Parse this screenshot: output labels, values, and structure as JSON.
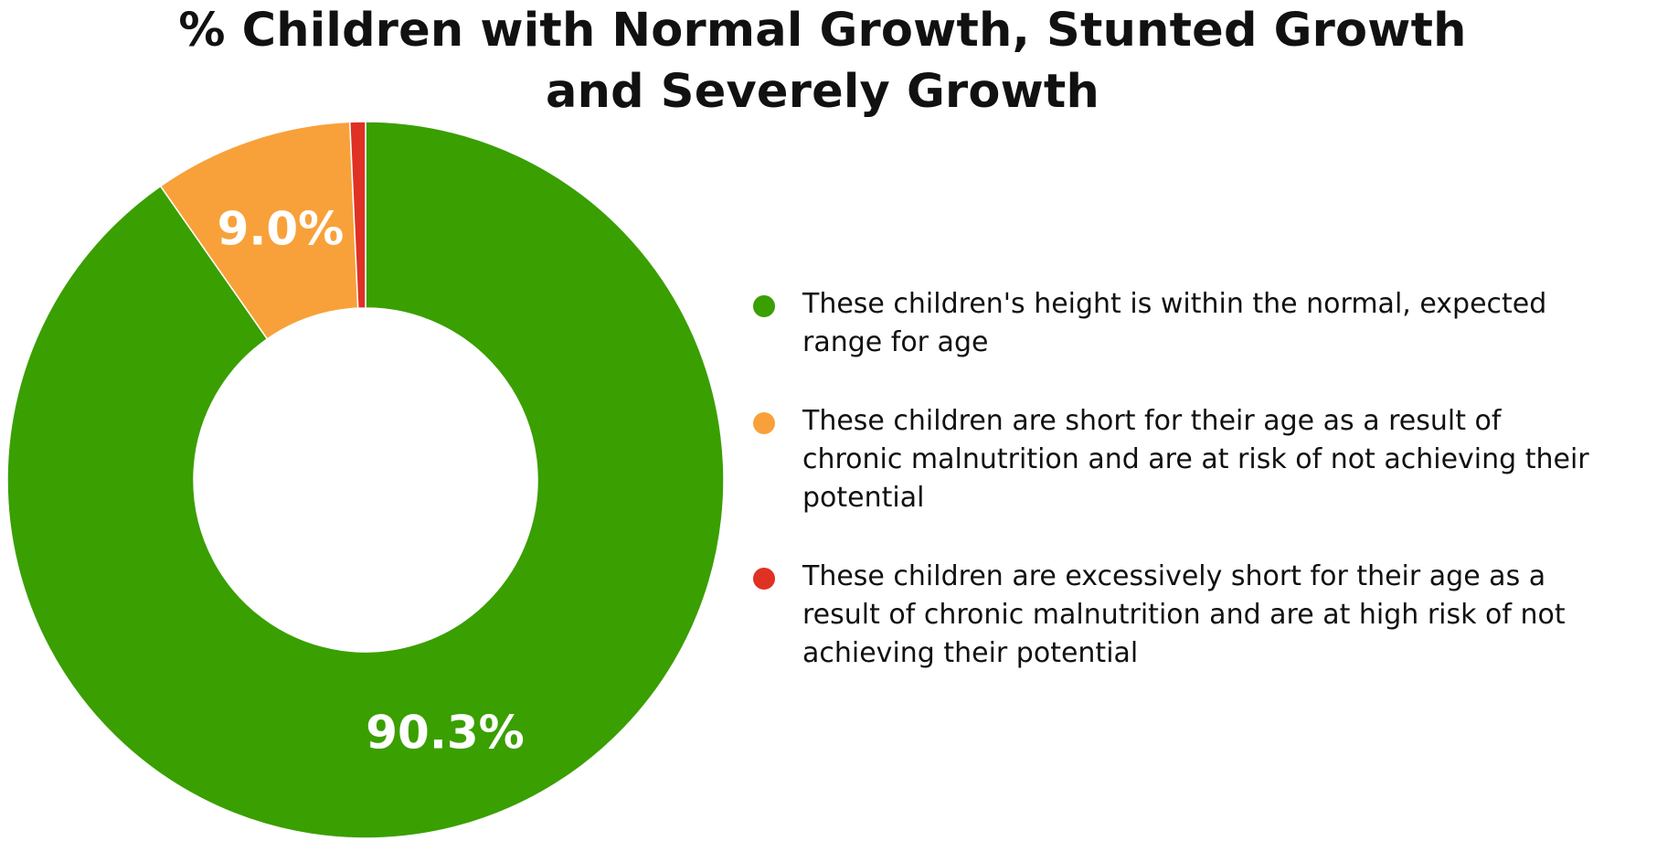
{
  "chart_data": {
    "type": "pie",
    "title": "% Children with Normal Growth, Stunted Growth and Severely Growth",
    "categories": [
      "These children's height is within the normal, expected range for age",
      "These children are short for their age as a result of chronic malnutrition and are at risk of not achieving their potential",
      "These children are excessively short for their age as a result of chronic malnutrition and are at high risk of not achieving their potential"
    ],
    "values": [
      90.3,
      9.0,
      0.7
    ],
    "value_labels": [
      "90.3%",
      "9.0%",
      ""
    ],
    "colors": [
      "#3A9F00",
      "#F8A13A",
      "#DF3124"
    ],
    "donut": true,
    "legend_position": "right"
  }
}
